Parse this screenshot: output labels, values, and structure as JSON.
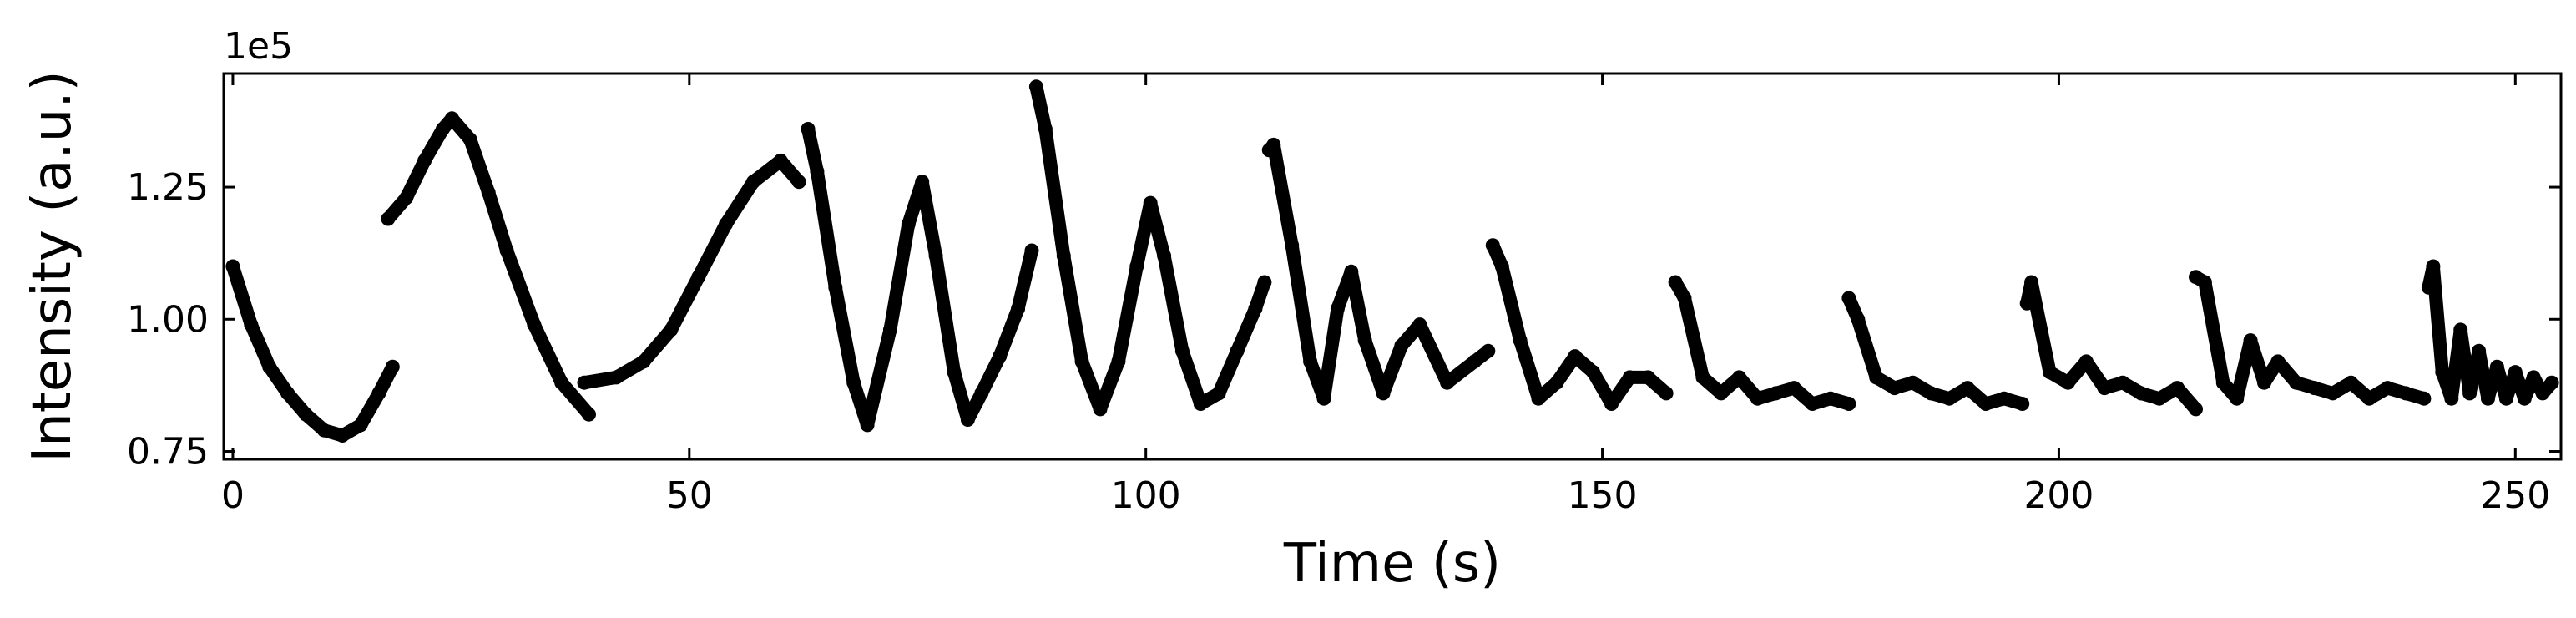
{
  "chart_data": {
    "type": "line",
    "title": "",
    "xlabel": "Time (s)",
    "ylabel": "Intensity (a.u.)",
    "y_offset_label": "1e5",
    "xlim": [
      -1,
      255
    ],
    "ylim": [
      0.735,
      1.465
    ],
    "xticks": [
      0,
      50,
      100,
      150,
      200,
      250
    ],
    "xtick_labels": [
      "0",
      "50",
      "100",
      "150",
      "200",
      "250"
    ],
    "yticks": [
      0.75,
      1.0,
      1.25
    ],
    "ytick_labels": [
      "0.75",
      "1.00",
      "1.25"
    ],
    "grid": false,
    "color": "#000000",
    "series": [
      {
        "x": [
          0,
          2,
          4,
          6,
          8,
          10,
          12,
          14,
          16,
          17.5
        ],
        "y": [
          1.1,
          0.99,
          0.91,
          0.86,
          0.82,
          0.79,
          0.78,
          0.8,
          0.86,
          0.91
        ]
      },
      {
        "x": [
          17,
          19,
          21,
          23,
          24,
          26,
          28,
          30,
          33,
          36,
          39
        ],
        "y": [
          1.19,
          1.23,
          1.3,
          1.36,
          1.38,
          1.34,
          1.24,
          1.13,
          0.99,
          0.88,
          0.82
        ]
      },
      {
        "x": [
          38.5,
          42,
          45,
          48,
          51,
          54,
          57,
          60,
          62
        ],
        "y": [
          0.88,
          0.89,
          0.92,
          0.98,
          1.08,
          1.18,
          1.26,
          1.3,
          1.26
        ]
      },
      {
        "x": [
          63,
          64,
          66,
          68,
          69.5,
          72,
          74,
          75.5,
          77,
          79,
          80.5,
          82,
          84,
          86,
          87.5
        ],
        "y": [
          1.36,
          1.28,
          1.06,
          0.88,
          0.8,
          0.98,
          1.18,
          1.26,
          1.12,
          0.9,
          0.81,
          0.86,
          0.93,
          1.02,
          1.13
        ]
      },
      {
        "x": [
          88,
          89,
          91,
          93,
          95,
          97,
          99,
          100.5,
          102,
          104,
          106,
          108,
          110,
          112,
          113
        ],
        "y": [
          1.44,
          1.36,
          1.12,
          0.92,
          0.83,
          0.92,
          1.1,
          1.22,
          1.12,
          0.94,
          0.84,
          0.86,
          0.94,
          1.02,
          1.07
        ]
      },
      {
        "x": [
          113.5,
          114,
          116,
          118,
          119.5,
          121,
          122.5,
          124,
          126,
          128,
          130,
          133,
          136,
          137.5
        ],
        "y": [
          1.32,
          1.33,
          1.14,
          0.92,
          0.85,
          1.02,
          1.09,
          0.96,
          0.86,
          0.95,
          0.99,
          0.88,
          0.92,
          0.94
        ]
      },
      {
        "x": [
          138,
          139,
          141,
          143,
          145,
          147,
          149,
          151,
          153,
          155,
          157
        ],
        "y": [
          1.14,
          1.1,
          0.96,
          0.85,
          0.88,
          0.93,
          0.9,
          0.84,
          0.89,
          0.89,
          0.86
        ]
      },
      {
        "x": [
          158,
          159,
          161,
          163,
          165,
          167,
          169,
          171,
          173,
          175,
          177
        ],
        "y": [
          1.07,
          1.04,
          0.89,
          0.86,
          0.89,
          0.85,
          0.86,
          0.87,
          0.84,
          0.85,
          0.84
        ]
      },
      {
        "x": [
          177,
          178,
          180,
          182,
          184,
          186,
          188,
          190,
          192,
          194,
          196
        ],
        "y": [
          1.04,
          1.0,
          0.89,
          0.87,
          0.88,
          0.86,
          0.85,
          0.87,
          0.84,
          0.85,
          0.84
        ]
      },
      {
        "x": [
          196.5,
          197,
          199,
          201,
          203,
          205,
          207,
          209,
          211,
          213,
          215
        ],
        "y": [
          1.03,
          1.07,
          0.9,
          0.88,
          0.92,
          0.87,
          0.88,
          0.86,
          0.85,
          0.87,
          0.83
        ]
      },
      {
        "x": [
          215,
          216,
          218,
          219.5,
          221,
          222.5,
          224,
          226,
          228,
          230,
          232,
          234,
          236,
          238,
          240
        ],
        "y": [
          1.08,
          1.07,
          0.88,
          0.85,
          0.96,
          0.88,
          0.92,
          0.88,
          0.87,
          0.86,
          0.88,
          0.85,
          0.87,
          0.86,
          0.85
        ]
      },
      {
        "x": [
          240.5,
          241,
          242,
          243,
          244,
          245,
          246,
          247,
          248,
          249,
          250,
          251,
          252,
          253,
          254
        ],
        "y": [
          1.06,
          1.1,
          0.9,
          0.85,
          0.98,
          0.86,
          0.94,
          0.85,
          0.91,
          0.85,
          0.9,
          0.85,
          0.89,
          0.86,
          0.88
        ]
      }
    ]
  }
}
